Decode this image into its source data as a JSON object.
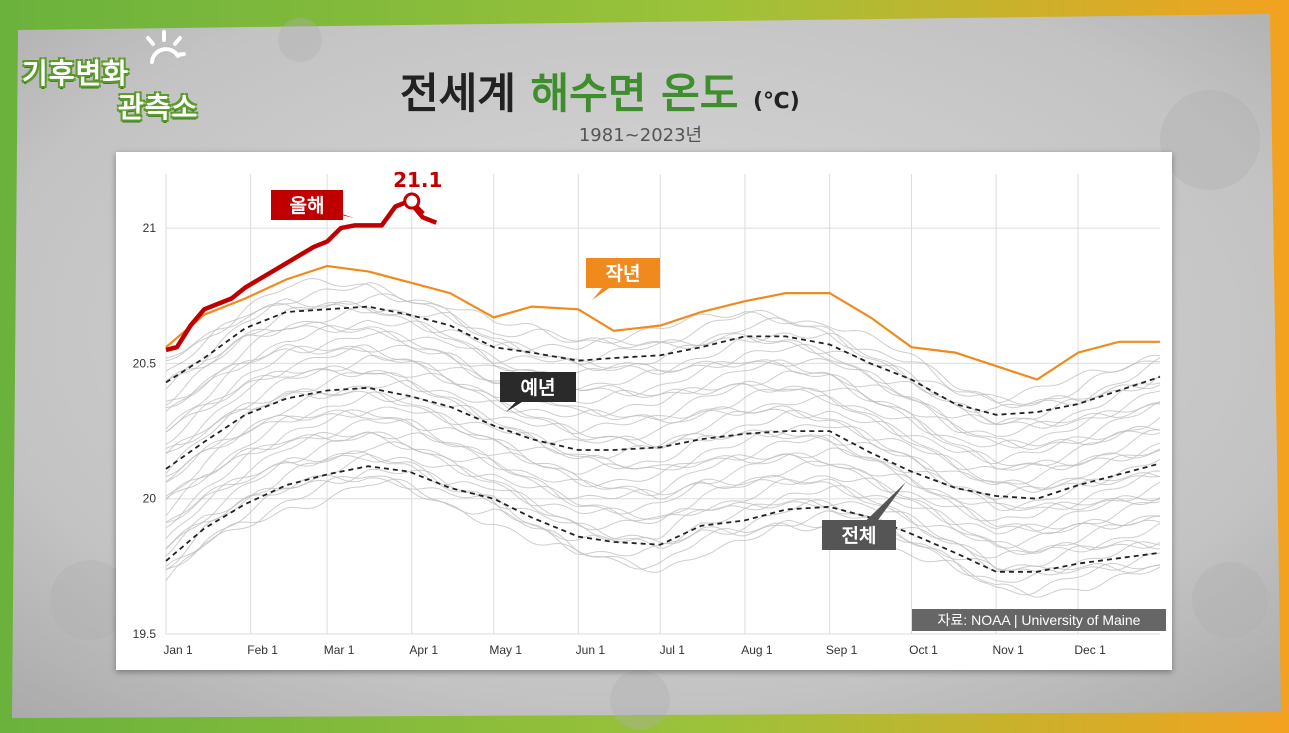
{
  "logo": {
    "line1": "기후변화",
    "line2": "관측소"
  },
  "title": {
    "part1": "전세계",
    "highlight": "해수면 온도",
    "unit": "(℃)"
  },
  "subtitle": "1981~2023년",
  "source": "자료: NOAA | University of Maine",
  "colors": {
    "this_year": "#c00000",
    "last_year": "#f08a1c",
    "normal": "#222222",
    "all_years": "#bdbdbd",
    "frame_green": "#6ab23c",
    "frame_orange": "#f3a21f",
    "title_green": "#3e8e2e"
  },
  "chart_data": {
    "type": "line",
    "title": "전세계 해수면 온도 (℃)",
    "subtitle": "1981~2023년",
    "ylim": [
      19.5,
      21.2
    ],
    "yticks": [
      19.5,
      20,
      20.5,
      21
    ],
    "ytick_labels": [
      "19.5",
      "20",
      "20.5",
      "21"
    ],
    "x_months": [
      "Jan 1",
      "Feb 1",
      "Mar 1",
      "Apr 1",
      "May 1",
      "Jun 1",
      "Jul 1",
      "Aug 1",
      "Sep 1",
      "Oct 1",
      "Nov 1",
      "Dec 1"
    ],
    "x_month_days": [
      1,
      32,
      60,
      91,
      121,
      152,
      182,
      213,
      244,
      274,
      305,
      335
    ],
    "xlim": [
      1,
      365
    ],
    "grid": true,
    "series": [
      {
        "name": "올해",
        "style": "thick red",
        "x": [
          1,
          5,
          10,
          15,
          20,
          25,
          30,
          35,
          40,
          45,
          50,
          55,
          60,
          65,
          70,
          75,
          80,
          85,
          90,
          95,
          100
        ],
        "y": [
          20.55,
          20.56,
          20.64,
          20.7,
          20.72,
          20.74,
          20.78,
          20.81,
          20.84,
          20.87,
          20.9,
          20.93,
          20.95,
          21.0,
          21.01,
          21.01,
          21.01,
          21.08,
          21.1,
          21.04,
          21.02
        ]
      },
      {
        "name": "작년",
        "style": "orange",
        "x": [
          1,
          15,
          30,
          45,
          60,
          75,
          90,
          105,
          121,
          135,
          152,
          165,
          182,
          197,
          213,
          228,
          244,
          259,
          274,
          290,
          305,
          320,
          335,
          350,
          365
        ],
        "y": [
          20.56,
          20.68,
          20.74,
          20.81,
          20.86,
          20.84,
          20.8,
          20.76,
          20.67,
          20.71,
          20.7,
          20.62,
          20.64,
          20.69,
          20.73,
          20.76,
          20.76,
          20.67,
          20.56,
          20.54,
          20.49,
          20.44,
          20.54,
          20.58,
          20.58
        ]
      },
      {
        "name": "예년",
        "style": "black dashed mean",
        "x": [
          1,
          15,
          30,
          45,
          60,
          75,
          90,
          105,
          121,
          135,
          152,
          165,
          182,
          197,
          213,
          228,
          244,
          259,
          274,
          290,
          305,
          320,
          335,
          350,
          365
        ],
        "y": [
          20.11,
          20.21,
          20.31,
          20.37,
          20.4,
          20.41,
          20.38,
          20.34,
          20.27,
          20.22,
          20.18,
          20.18,
          20.19,
          20.22,
          20.24,
          20.25,
          20.25,
          20.17,
          20.1,
          20.04,
          20.01,
          20.0,
          20.05,
          20.09,
          20.13
        ]
      },
      {
        "name": "upper band",
        "style": "black dashed",
        "x": [
          1,
          15,
          30,
          45,
          60,
          75,
          90,
          105,
          121,
          135,
          152,
          165,
          182,
          197,
          213,
          228,
          244,
          259,
          274,
          290,
          305,
          320,
          335,
          350,
          365
        ],
        "y": [
          20.43,
          20.52,
          20.63,
          20.69,
          20.7,
          20.71,
          20.68,
          20.64,
          20.56,
          20.54,
          20.51,
          20.52,
          20.53,
          20.56,
          20.6,
          20.6,
          20.57,
          20.5,
          20.44,
          20.35,
          20.31,
          20.32,
          20.35,
          20.4,
          20.45
        ]
      },
      {
        "name": "lower band",
        "style": "black dashed",
        "x": [
          1,
          15,
          30,
          45,
          60,
          75,
          90,
          105,
          121,
          135,
          152,
          165,
          182,
          197,
          213,
          228,
          244,
          259,
          274,
          290,
          305,
          320,
          335,
          350,
          365
        ],
        "y": [
          19.77,
          19.89,
          19.98,
          20.05,
          20.09,
          20.12,
          20.1,
          20.04,
          20.0,
          19.93,
          19.86,
          19.84,
          19.83,
          19.9,
          19.92,
          19.96,
          19.97,
          19.93,
          19.87,
          19.8,
          19.73,
          19.73,
          19.76,
          19.78,
          19.8
        ]
      }
    ],
    "annotations": [
      {
        "label": "21.1",
        "x": 91,
        "y": 21.1
      },
      {
        "label": "올해"
      },
      {
        "label": "작년"
      },
      {
        "label": "예년"
      },
      {
        "label": "전체"
      }
    ]
  }
}
